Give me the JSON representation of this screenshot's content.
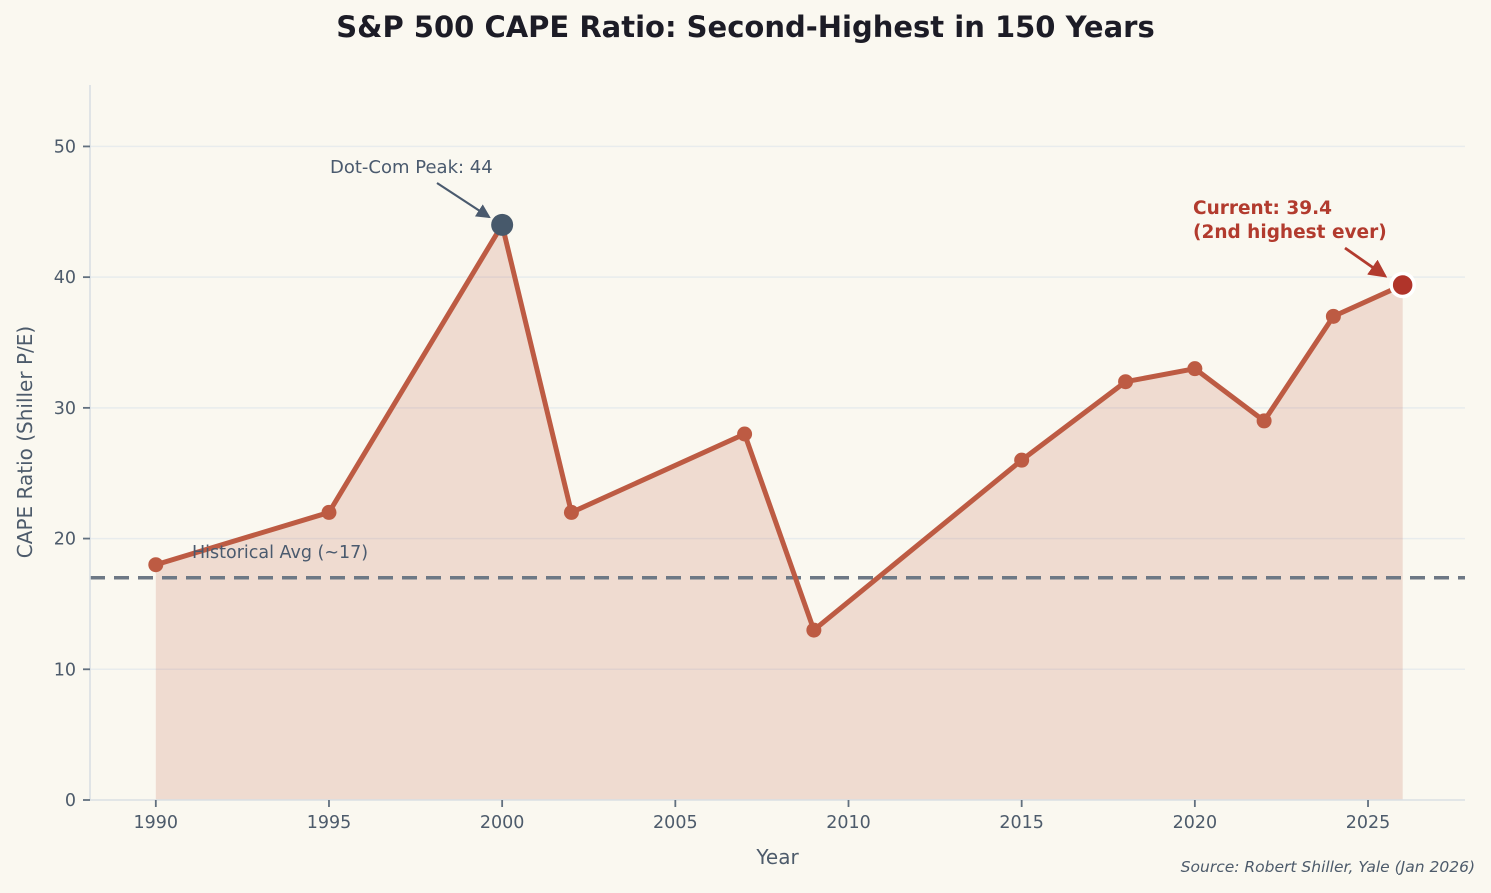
{
  "figure": {
    "title": "S&P 500 CAPE Ratio: Second-Highest in 150 Years"
  },
  "chart_data": {
    "type": "line",
    "title": "S&P 500 CAPE Ratio: Second-Highest in 150 Years",
    "xlabel": "Year",
    "ylabel": "CAPE Ratio (Shiller P/E)",
    "series": [
      {
        "name": "CAPE Ratio",
        "x": [
          1990,
          1995,
          2000,
          2002,
          2007,
          2009,
          2015,
          2018,
          2020,
          2022,
          2024,
          2026
        ],
        "y": [
          18,
          22,
          44,
          22,
          28,
          13,
          26,
          32,
          33,
          29,
          37,
          39.4
        ]
      }
    ],
    "xlim": [
      1988.1,
      2027.8
    ],
    "ylim": [
      0,
      54.7
    ],
    "xticks": [
      1990,
      1995,
      2000,
      2005,
      2010,
      2015,
      2020,
      2025
    ],
    "yticks": [
      0,
      10,
      20,
      30,
      40,
      50
    ],
    "grid": "horizontal",
    "area_fill": true,
    "legend_position": "none",
    "reference_line": {
      "value": 17,
      "label": "Historical Avg (~17)",
      "style": "dashed"
    },
    "annotations": [
      {
        "text": "Dot-Com Peak: 44",
        "x": 2000,
        "y": 44,
        "color_role": "slate"
      },
      {
        "text_line1": "Current: 39.4",
        "text_line2": "(2nd highest ever)",
        "x": 2026,
        "y": 39.4,
        "color_role": "red"
      }
    ],
    "highlight_points": [
      {
        "x": 2000,
        "y": 44,
        "role": "dotcom-peak"
      },
      {
        "x": 2026,
        "y": 39.4,
        "role": "current-value"
      }
    ],
    "source": "Source: Robert Shiller, Yale (Jan 2026)"
  },
  "colors": {
    "background": "#faf8f0",
    "title_text": "#1c1c26",
    "axis_text": "#4d5b6b",
    "spine": "#d9dfe4",
    "tick_mark": "#62707f",
    "grid": "#e8eced",
    "line": "#bd5b43",
    "area_fill": "rgba(189,91,67,0.18)",
    "reference_line": "#6d7885",
    "peak_marker": "#47596b",
    "current_marker": "#b0342a",
    "annotation_slate": "#4a5a6e",
    "annotation_red": "#b23b2e"
  }
}
